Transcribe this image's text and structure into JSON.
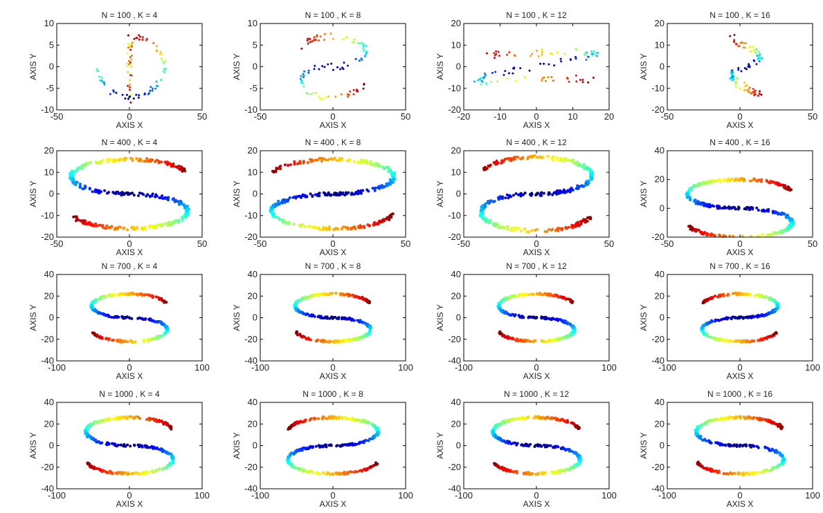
{
  "figure": {
    "rows": [
      {
        "n": 100,
        "xlim": [
          -50,
          50
        ],
        "xticks": [
          -50,
          0,
          50
        ],
        "panels": [
          {
            "title": "N = 100 , K = 4",
            "xlim": [
              -50,
              50
            ],
            "xticks": [
              -50,
              0,
              50
            ],
            "ylim": [
              -10,
              10
            ],
            "yticks": [
              -10,
              -5,
              0,
              5,
              10
            ],
            "shape": "ring",
            "mirror": false,
            "noise": 1.4,
            "xamp": 24,
            "yamp": 7
          },
          {
            "title": "N = 100 , K = 8",
            "xlim": [
              -50,
              50
            ],
            "xticks": [
              -50,
              0,
              50
            ],
            "ylim": [
              -10,
              10
            ],
            "yticks": [
              -10,
              -5,
              0,
              5,
              10
            ],
            "shape": "s",
            "mirror": true,
            "noise": 1.6,
            "xamp": 22,
            "yamp": 7
          },
          {
            "title": "N = 100 , K = 12",
            "xlim": [
              -20,
              20
            ],
            "xticks": [
              -20,
              -10,
              0,
              10,
              20
            ],
            "ylim": [
              -20,
              20
            ],
            "yticks": [
              -20,
              -10,
              0,
              10,
              20
            ],
            "shape": "flat",
            "mirror": false,
            "noise": 2.2,
            "xamp": 16,
            "yamp": 11
          },
          {
            "title": "N = 100 , K = 16",
            "xlim": [
              -50,
              50
            ],
            "xticks": [
              -50,
              0,
              50
            ],
            "ylim": [
              -20,
              20
            ],
            "yticks": [
              -20,
              -10,
              0,
              10,
              20
            ],
            "shape": "narrow",
            "mirror": false,
            "noise": 2.0,
            "xamp": 18,
            "yamp": 15
          }
        ]
      },
      {
        "n": 400,
        "panels": [
          {
            "title": "N = 400 , K = 4",
            "xlim": [
              -50,
              50
            ],
            "xticks": [
              -50,
              0,
              50
            ],
            "ylim": [
              -20,
              20
            ],
            "yticks": [
              -20,
              -10,
              0,
              10,
              20
            ],
            "shape": "s",
            "mirror": false,
            "noise": 0.7,
            "xamp": 40,
            "yamp": 16
          },
          {
            "title": "N = 400 , K = 8",
            "xlim": [
              -50,
              50
            ],
            "xticks": [
              -50,
              0,
              50
            ],
            "ylim": [
              -20,
              20
            ],
            "yticks": [
              -20,
              -10,
              0,
              10,
              20
            ],
            "shape": "s",
            "mirror": true,
            "noise": 0.7,
            "xamp": 42,
            "yamp": 16
          },
          {
            "title": "N = 400 , K = 12",
            "xlim": [
              -50,
              50
            ],
            "xticks": [
              -50,
              0,
              50
            ],
            "ylim": [
              -20,
              20
            ],
            "yticks": [
              -20,
              -10,
              0,
              10,
              20
            ],
            "shape": "s",
            "mirror": true,
            "noise": 0.7,
            "xamp": 38,
            "yamp": 17
          },
          {
            "title": "N = 400 , K = 16",
            "xlim": [
              -50,
              50
            ],
            "xticks": [
              -50,
              0,
              50
            ],
            "ylim": [
              -20,
              40
            ],
            "yticks": [
              -20,
              0,
              20,
              40
            ],
            "shape": "s",
            "mirror": false,
            "noise": 0.7,
            "xamp": 36,
            "yamp": 20
          }
        ]
      },
      {
        "n": 700,
        "panels": [
          {
            "title": "N = 700 , K = 4",
            "xlim": [
              -100,
              100
            ],
            "xticks": [
              -100,
              0,
              100
            ],
            "ylim": [
              -40,
              40
            ],
            "yticks": [
              -40,
              -20,
              0,
              20,
              40
            ],
            "shape": "s",
            "mirror": false,
            "noise": 0.6,
            "xamp": 52,
            "yamp": 22
          },
          {
            "title": "N = 700 , K = 8",
            "xlim": [
              -100,
              100
            ],
            "xticks": [
              -100,
              0,
              100
            ],
            "ylim": [
              -40,
              40
            ],
            "yticks": [
              -40,
              -20,
              0,
              20,
              40
            ],
            "shape": "s",
            "mirror": false,
            "noise": 0.6,
            "xamp": 52,
            "yamp": 22
          },
          {
            "title": "N = 700 , K = 12",
            "xlim": [
              -100,
              100
            ],
            "xticks": [
              -100,
              0,
              100
            ],
            "ylim": [
              -40,
              40
            ],
            "yticks": [
              -40,
              -20,
              0,
              20,
              40
            ],
            "shape": "s",
            "mirror": false,
            "noise": 0.6,
            "xamp": 52,
            "yamp": 22
          },
          {
            "title": "N = 700 , K = 16",
            "xlim": [
              -100,
              100
            ],
            "xticks": [
              -100,
              0,
              100
            ],
            "ylim": [
              -40,
              40
            ],
            "yticks": [
              -40,
              -20,
              0,
              20,
              40
            ],
            "shape": "s",
            "mirror": true,
            "noise": 0.6,
            "xamp": 52,
            "yamp": 22
          }
        ]
      },
      {
        "n": 1000,
        "panels": [
          {
            "title": "N = 1000 , K = 4",
            "xlim": [
              -100,
              100
            ],
            "xticks": [
              -100,
              0,
              100
            ],
            "ylim": [
              -40,
              40
            ],
            "yticks": [
              -40,
              -20,
              0,
              20,
              40
            ],
            "shape": "s",
            "mirror": false,
            "noise": 0.6,
            "xamp": 60,
            "yamp": 26
          },
          {
            "title": "N = 1000 , K = 8",
            "xlim": [
              -100,
              100
            ],
            "xticks": [
              -100,
              0,
              100
            ],
            "ylim": [
              -40,
              40
            ],
            "yticks": [
              -40,
              -20,
              0,
              20,
              40
            ],
            "shape": "s",
            "mirror": true,
            "noise": 0.6,
            "xamp": 62,
            "yamp": 26
          },
          {
            "title": "N = 1000 , K = 12",
            "xlim": [
              -100,
              100
            ],
            "xticks": [
              -100,
              0,
              100
            ],
            "ylim": [
              -40,
              40
            ],
            "yticks": [
              -40,
              -20,
              0,
              20,
              40
            ],
            "shape": "s",
            "mirror": false,
            "noise": 0.6,
            "xamp": 60,
            "yamp": 26
          },
          {
            "title": "N = 1000 , K = 16",
            "xlim": [
              -100,
              100
            ],
            "xticks": [
              -100,
              0,
              100
            ],
            "ylim": [
              -40,
              40
            ],
            "yticks": [
              -40,
              -20,
              0,
              20,
              40
            ],
            "shape": "s",
            "mirror": false,
            "noise": 0.6,
            "xamp": 60,
            "yamp": 26
          }
        ]
      }
    ],
    "xlabel": "AXIS X",
    "ylabel": "AXIS Y"
  },
  "chart_data": [
    {
      "type": "scatter",
      "title": "N = 100 , K = 4",
      "xlabel": "AXIS X",
      "ylabel": "AXIS Y",
      "xlim": [
        -50,
        50
      ],
      "ylim": [
        -10,
        10
      ],
      "grid": false,
      "color_scale": "jet"
    },
    {
      "type": "scatter",
      "title": "N = 100 , K = 8",
      "xlabel": "AXIS X",
      "ylabel": "AXIS Y",
      "xlim": [
        -50,
        50
      ],
      "ylim": [
        -10,
        10
      ],
      "grid": false,
      "color_scale": "jet"
    },
    {
      "type": "scatter",
      "title": "N = 100 , K = 12",
      "xlabel": "AXIS X",
      "ylabel": "AXIS Y",
      "xlim": [
        -20,
        20
      ],
      "ylim": [
        -20,
        20
      ],
      "grid": false,
      "color_scale": "jet"
    },
    {
      "type": "scatter",
      "title": "N = 100 , K = 16",
      "xlabel": "AXIS X",
      "ylabel": "AXIS Y",
      "xlim": [
        -50,
        50
      ],
      "ylim": [
        -20,
        20
      ],
      "grid": false,
      "color_scale": "jet"
    },
    {
      "type": "scatter",
      "title": "N = 400 , K = 4",
      "xlabel": "AXIS X",
      "ylabel": "AXIS Y",
      "xlim": [
        -50,
        50
      ],
      "ylim": [
        -20,
        20
      ],
      "grid": false,
      "color_scale": "jet"
    },
    {
      "type": "scatter",
      "title": "N = 400 , K = 8",
      "xlabel": "AXIS X",
      "ylabel": "AXIS Y",
      "xlim": [
        -50,
        50
      ],
      "ylim": [
        -20,
        20
      ],
      "grid": false,
      "color_scale": "jet"
    },
    {
      "type": "scatter",
      "title": "N = 400 , K = 12",
      "xlabel": "AXIS X",
      "ylabel": "AXIS Y",
      "xlim": [
        -50,
        50
      ],
      "ylim": [
        -20,
        20
      ],
      "grid": false,
      "color_scale": "jet"
    },
    {
      "type": "scatter",
      "title": "N = 400 , K = 16",
      "xlabel": "AXIS X",
      "ylabel": "AXIS Y",
      "xlim": [
        -50,
        50
      ],
      "ylim": [
        -20,
        40
      ],
      "grid": false,
      "color_scale": "jet"
    },
    {
      "type": "scatter",
      "title": "N = 700 , K = 4",
      "xlabel": "AXIS X",
      "ylabel": "AXIS Y",
      "xlim": [
        -100,
        100
      ],
      "ylim": [
        -40,
        40
      ],
      "grid": false,
      "color_scale": "jet"
    },
    {
      "type": "scatter",
      "title": "N = 700 , K = 8",
      "xlabel": "AXIS X",
      "ylabel": "AXIS Y",
      "xlim": [
        -100,
        100
      ],
      "ylim": [
        -40,
        40
      ],
      "grid": false,
      "color_scale": "jet"
    },
    {
      "type": "scatter",
      "title": "N = 700 , K = 12",
      "xlabel": "AXIS X",
      "ylabel": "AXIS Y",
      "xlim": [
        -100,
        100
      ],
      "ylim": [
        -40,
        40
      ],
      "grid": false,
      "color_scale": "jet"
    },
    {
      "type": "scatter",
      "title": "N = 700 , K = 16",
      "xlabel": "AXIS X",
      "ylabel": "AXIS Y",
      "xlim": [
        -100,
        100
      ],
      "ylim": [
        -40,
        40
      ],
      "grid": false,
      "color_scale": "jet"
    },
    {
      "type": "scatter",
      "title": "N = 1000 , K = 4",
      "xlabel": "AXIS X",
      "ylabel": "AXIS Y",
      "xlim": [
        -100,
        100
      ],
      "ylim": [
        -40,
        40
      ],
      "grid": false,
      "color_scale": "jet"
    },
    {
      "type": "scatter",
      "title": "N = 1000 , K = 8",
      "xlabel": "AXIS X",
      "ylabel": "AXIS Y",
      "xlim": [
        -100,
        100
      ],
      "ylim": [
        -40,
        40
      ],
      "grid": false,
      "color_scale": "jet"
    },
    {
      "type": "scatter",
      "title": "N = 1000 , K = 12",
      "xlabel": "AXIS X",
      "ylabel": "AXIS Y",
      "xlim": [
        -100,
        100
      ],
      "ylim": [
        -40,
        40
      ],
      "grid": false,
      "color_scale": "jet"
    },
    {
      "type": "scatter",
      "title": "N = 1000 , K = 16",
      "xlabel": "AXIS X",
      "ylabel": "AXIS Y",
      "xlim": [
        -100,
        100
      ],
      "ylim": [
        -40,
        40
      ],
      "grid": false,
      "color_scale": "jet"
    }
  ]
}
